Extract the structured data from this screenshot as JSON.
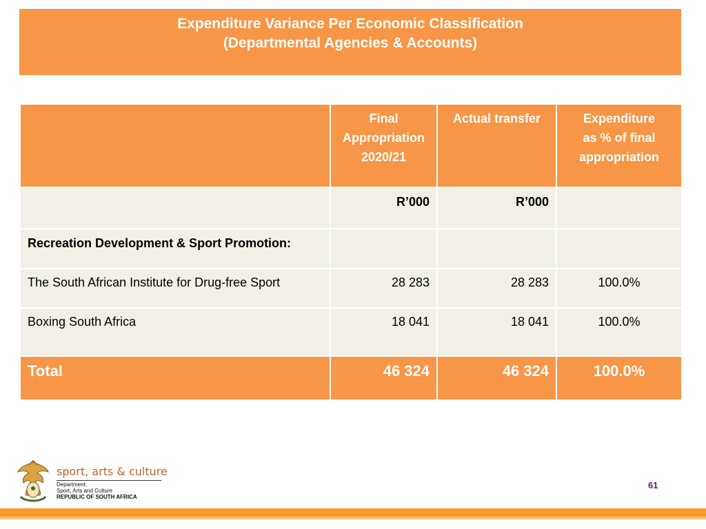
{
  "title": {
    "line1": "Expenditure Variance Per Economic Classification",
    "line2": "(Departmental Agencies & Accounts)"
  },
  "table": {
    "header": {
      "col1": "",
      "col2_lines": [
        "Final",
        "Appropriation",
        "2020/21"
      ],
      "col3": "Actual transfer",
      "col4_lines": [
        "Expenditure",
        "as % of final",
        "appropriation"
      ]
    },
    "units": {
      "col2": "R’000",
      "col3": "R’000"
    },
    "section_label": "Recreation Development & Sport Promotion:",
    "rows": [
      {
        "label": "The South African Institute for Drug-free Sport",
        "final": "28 283",
        "actual": "28 283",
        "pct": "100.0%"
      },
      {
        "label": "Boxing South Africa",
        "final": "18 041",
        "actual": "18 041",
        "pct": "100.0%"
      }
    ],
    "total": {
      "label": "Total",
      "final": "46 324",
      "actual": "46 324",
      "pct": "100.0%"
    }
  },
  "footer": {
    "brand": "sport, arts & culture",
    "dept_line1": "Department:",
    "dept_line2": "Sport, Arts and Culture",
    "dept_line3": "REPUBLIC OF SOUTH AFRICA",
    "page_number": "61"
  },
  "colors": {
    "accent": "#f79646",
    "row_bg": "#f2f0e6",
    "brand_text": "#c0652a",
    "page_number": "#6b1a6b",
    "footer_bar": "#f79a2a"
  }
}
